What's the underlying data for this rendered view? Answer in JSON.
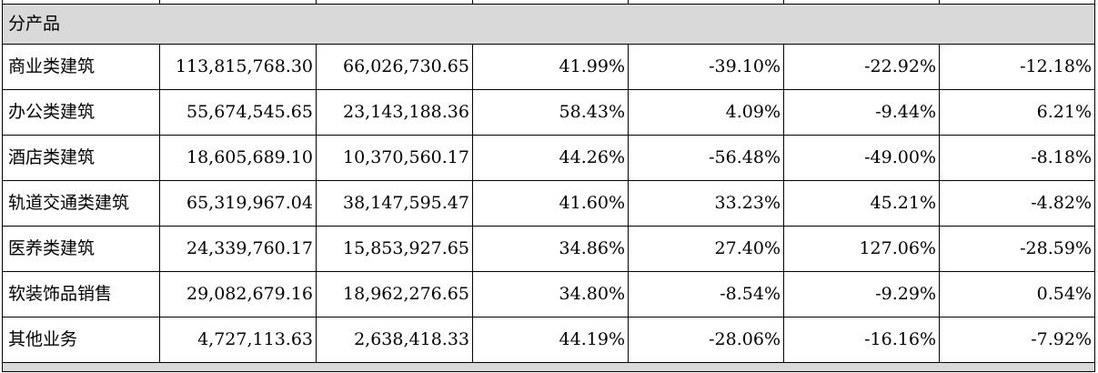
{
  "section_header": "分产品",
  "rows": [
    {
      "label": "商业类建筑",
      "c1": "113,815,768.30",
      "c2": "66,026,730.65",
      "c3": "41.99%",
      "c4": "-39.10%",
      "c5": "-22.92%",
      "c6": "-12.18%"
    },
    {
      "label": "办公类建筑",
      "c1": "55,674,545.65",
      "c2": "23,143,188.36",
      "c3": "58.43%",
      "c4": "4.09%",
      "c5": "-9.44%",
      "c6": "6.21%"
    },
    {
      "label": "酒店类建筑",
      "c1": "18,605,689.10",
      "c2": "10,370,560.17",
      "c3": "44.26%",
      "c4": "-56.48%",
      "c5": "-49.00%",
      "c6": "-8.18%"
    },
    {
      "label": "轨道交通类建筑",
      "c1": "65,319,967.04",
      "c2": "38,147,595.47",
      "c3": "41.60%",
      "c4": "33.23%",
      "c5": "45.21%",
      "c6": "-4.82%"
    },
    {
      "label": "医养类建筑",
      "c1": "24,339,760.17",
      "c2": "15,853,927.65",
      "c3": "34.86%",
      "c4": "27.40%",
      "c5": "127.06%",
      "c6": "-28.59%"
    },
    {
      "label": "软装饰品销售",
      "c1": "29,082,679.16",
      "c2": "18,962,276.65",
      "c3": "34.80%",
      "c4": "-8.54%",
      "c5": "-9.29%",
      "c6": "0.54%"
    },
    {
      "label": "其他业务",
      "c1": "4,727,113.63",
      "c2": "2,638,418.33",
      "c3": "44.19%",
      "c4": "-28.06%",
      "c5": "-16.16%",
      "c6": "-7.92%"
    }
  ]
}
